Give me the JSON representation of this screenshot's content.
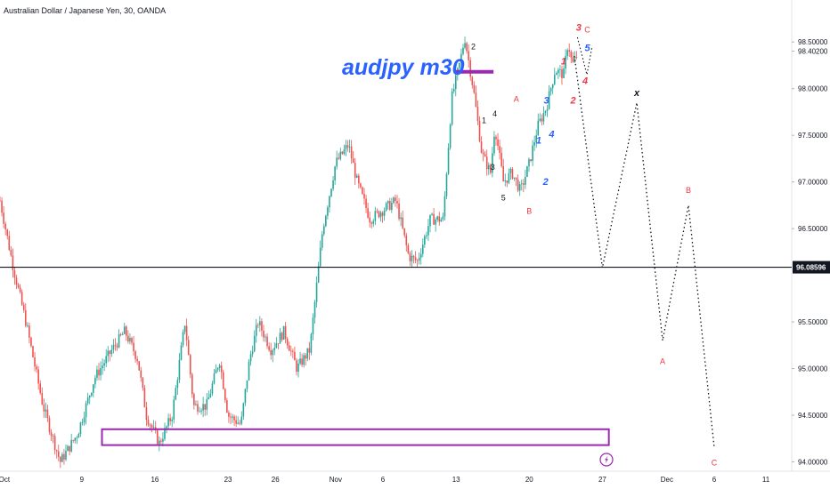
{
  "chart_title": "Australian Dollar / Japanese Yen, 30, OANDA",
  "annotation": "audjpy m30",
  "chart_data": {
    "type": "candlestick",
    "symbol": "AUDJPY",
    "timeframe": "30",
    "source": "OANDA",
    "ylim": [
      93.9,
      98.95
    ],
    "y_ticks": [
      "98.50000",
      "98.40200",
      "98.00000",
      "97.50000",
      "97.00000",
      "96.50000",
      "95.50000",
      "95.00000",
      "94.50000",
      "94.00000"
    ],
    "y_tick_values": [
      98.5,
      98.402,
      98.0,
      97.5,
      97.0,
      96.5,
      95.5,
      95.0,
      94.5,
      94.0
    ],
    "x_ticks": [
      "Oct",
      "9",
      "16",
      "23",
      "26",
      "Nov",
      "6",
      "13",
      "20",
      "27",
      "Dec",
      "6",
      "11"
    ],
    "current_price": "96.08596",
    "current_price_value": 96.08596,
    "price_path": [
      [
        0,
        96.8
      ],
      [
        3,
        96.1
      ],
      [
        6,
        95.5
      ],
      [
        10,
        94.6
      ],
      [
        14,
        94.0
      ],
      [
        18,
        94.3
      ],
      [
        22,
        94.9
      ],
      [
        26,
        95.2
      ],
      [
        29,
        95.4
      ],
      [
        32,
        95.1
      ],
      [
        34,
        94.5
      ],
      [
        37,
        94.2
      ],
      [
        40,
        94.5
      ],
      [
        43,
        95.5
      ],
      [
        45,
        94.6
      ],
      [
        48,
        94.6
      ],
      [
        51,
        95.1
      ],
      [
        53,
        94.5
      ],
      [
        56,
        94.4
      ],
      [
        58,
        95.1
      ],
      [
        60,
        95.5
      ],
      [
        63,
        95.2
      ],
      [
        66,
        95.4
      ],
      [
        69,
        95.0
      ],
      [
        72,
        95.2
      ],
      [
        75,
        96.5
      ],
      [
        78,
        97.2
      ],
      [
        81,
        97.4
      ],
      [
        83,
        97.0
      ],
      [
        86,
        96.6
      ],
      [
        89,
        96.7
      ],
      [
        92,
        96.8
      ],
      [
        95,
        96.2
      ],
      [
        97,
        96.15
      ],
      [
        100,
        96.6
      ],
      [
        103,
        96.6
      ],
      [
        105,
        97.9
      ],
      [
        107,
        98.3
      ],
      [
        108,
        98.55
      ],
      [
        110,
        98.0
      ],
      [
        112,
        97.3
      ],
      [
        114,
        97.1
      ],
      [
        115,
        97.6
      ],
      [
        117,
        97.0
      ],
      [
        119,
        97.1
      ],
      [
        121,
        96.9
      ],
      [
        123,
        97.2
      ],
      [
        125,
        97.6
      ],
      [
        127,
        97.8
      ],
      [
        129,
        98.2
      ],
      [
        131,
        98.15
      ],
      [
        132,
        98.5
      ],
      [
        133,
        98.25
      ],
      [
        134,
        98.35
      ]
    ],
    "projection_path": [
      [
        133.5,
        98.35
      ],
      [
        140,
        96.08
      ],
      [
        148,
        97.85
      ],
      [
        154,
        95.3
      ],
      [
        160,
        96.75
      ],
      [
        166,
        94.15
      ]
    ],
    "horizontal_line": 96.08596,
    "zone_low": 94.18,
    "zone_high": 94.35,
    "zone_top_line": 98.18,
    "projection_labels": [
      {
        "text": "x",
        "at": [
          148,
          97.92
        ],
        "color": "#131722"
      },
      {
        "text": "A",
        "at": [
          154,
          95.05
        ],
        "color": "#f23645"
      },
      {
        "text": "B",
        "at": [
          160,
          96.88
        ],
        "color": "#f23645"
      },
      {
        "text": "C",
        "at": [
          166,
          93.96
        ],
        "color": "#f23645"
      }
    ],
    "wave_labels": [
      {
        "text": "2",
        "at": [
          110,
          98.42
        ],
        "color": "#131722",
        "style": "plain"
      },
      {
        "text": "1",
        "at": [
          112.5,
          97.63
        ],
        "color": "#131722",
        "style": "plain"
      },
      {
        "text": "4",
        "at": [
          115,
          97.7
        ],
        "color": "#131722",
        "style": "plain"
      },
      {
        "text": "3",
        "at": [
          114.5,
          97.13
        ],
        "color": "#131722",
        "style": "plain"
      },
      {
        "text": "5",
        "at": [
          117,
          96.8
        ],
        "color": "#131722",
        "style": "plain"
      },
      {
        "text": "A",
        "at": [
          120,
          97.86
        ],
        "color": "#f23645",
        "style": "plain"
      },
      {
        "text": "B",
        "at": [
          123,
          96.66
        ],
        "color": "#f23645",
        "style": "plain"
      },
      {
        "text": "C",
        "at": [
          136.5,
          98.6
        ],
        "color": "#f23645",
        "style": "plain"
      },
      {
        "text": "3",
        "at": [
          134.5,
          98.62
        ],
        "color": "#f23645",
        "style": "italic"
      },
      {
        "text": "5",
        "at": [
          136.5,
          98.4
        ],
        "color": "#2962ff",
        "style": "italic"
      },
      {
        "text": "1",
        "at": [
          131,
          98.26
        ],
        "color": "#f23645",
        "style": "italic"
      },
      {
        "text": "4",
        "at": [
          136,
          98.05
        ],
        "color": "#f23645",
        "style": "italic"
      },
      {
        "text": "2",
        "at": [
          133.2,
          97.84
        ],
        "color": "#f23645",
        "style": "italic"
      },
      {
        "text": "3",
        "at": [
          127,
          97.84
        ],
        "color": "#2962ff",
        "style": "italic"
      },
      {
        "text": "1",
        "at": [
          125.2,
          97.41
        ],
        "color": "#2962ff",
        "style": "italic"
      },
      {
        "text": "4",
        "at": [
          128.2,
          97.48
        ],
        "color": "#2962ff",
        "style": "italic"
      },
      {
        "text": "2",
        "at": [
          126.8,
          96.97
        ],
        "color": "#2962ff",
        "style": "italic"
      }
    ],
    "x_domain": [
      0,
      184
    ]
  },
  "colors": {
    "up": "#26a69a",
    "down": "#ef5350",
    "line": "#131722",
    "zone": "#9c27b0",
    "badge": "#131722",
    "grid": "#f0f3fa",
    "lightning": "#9c27b0"
  }
}
